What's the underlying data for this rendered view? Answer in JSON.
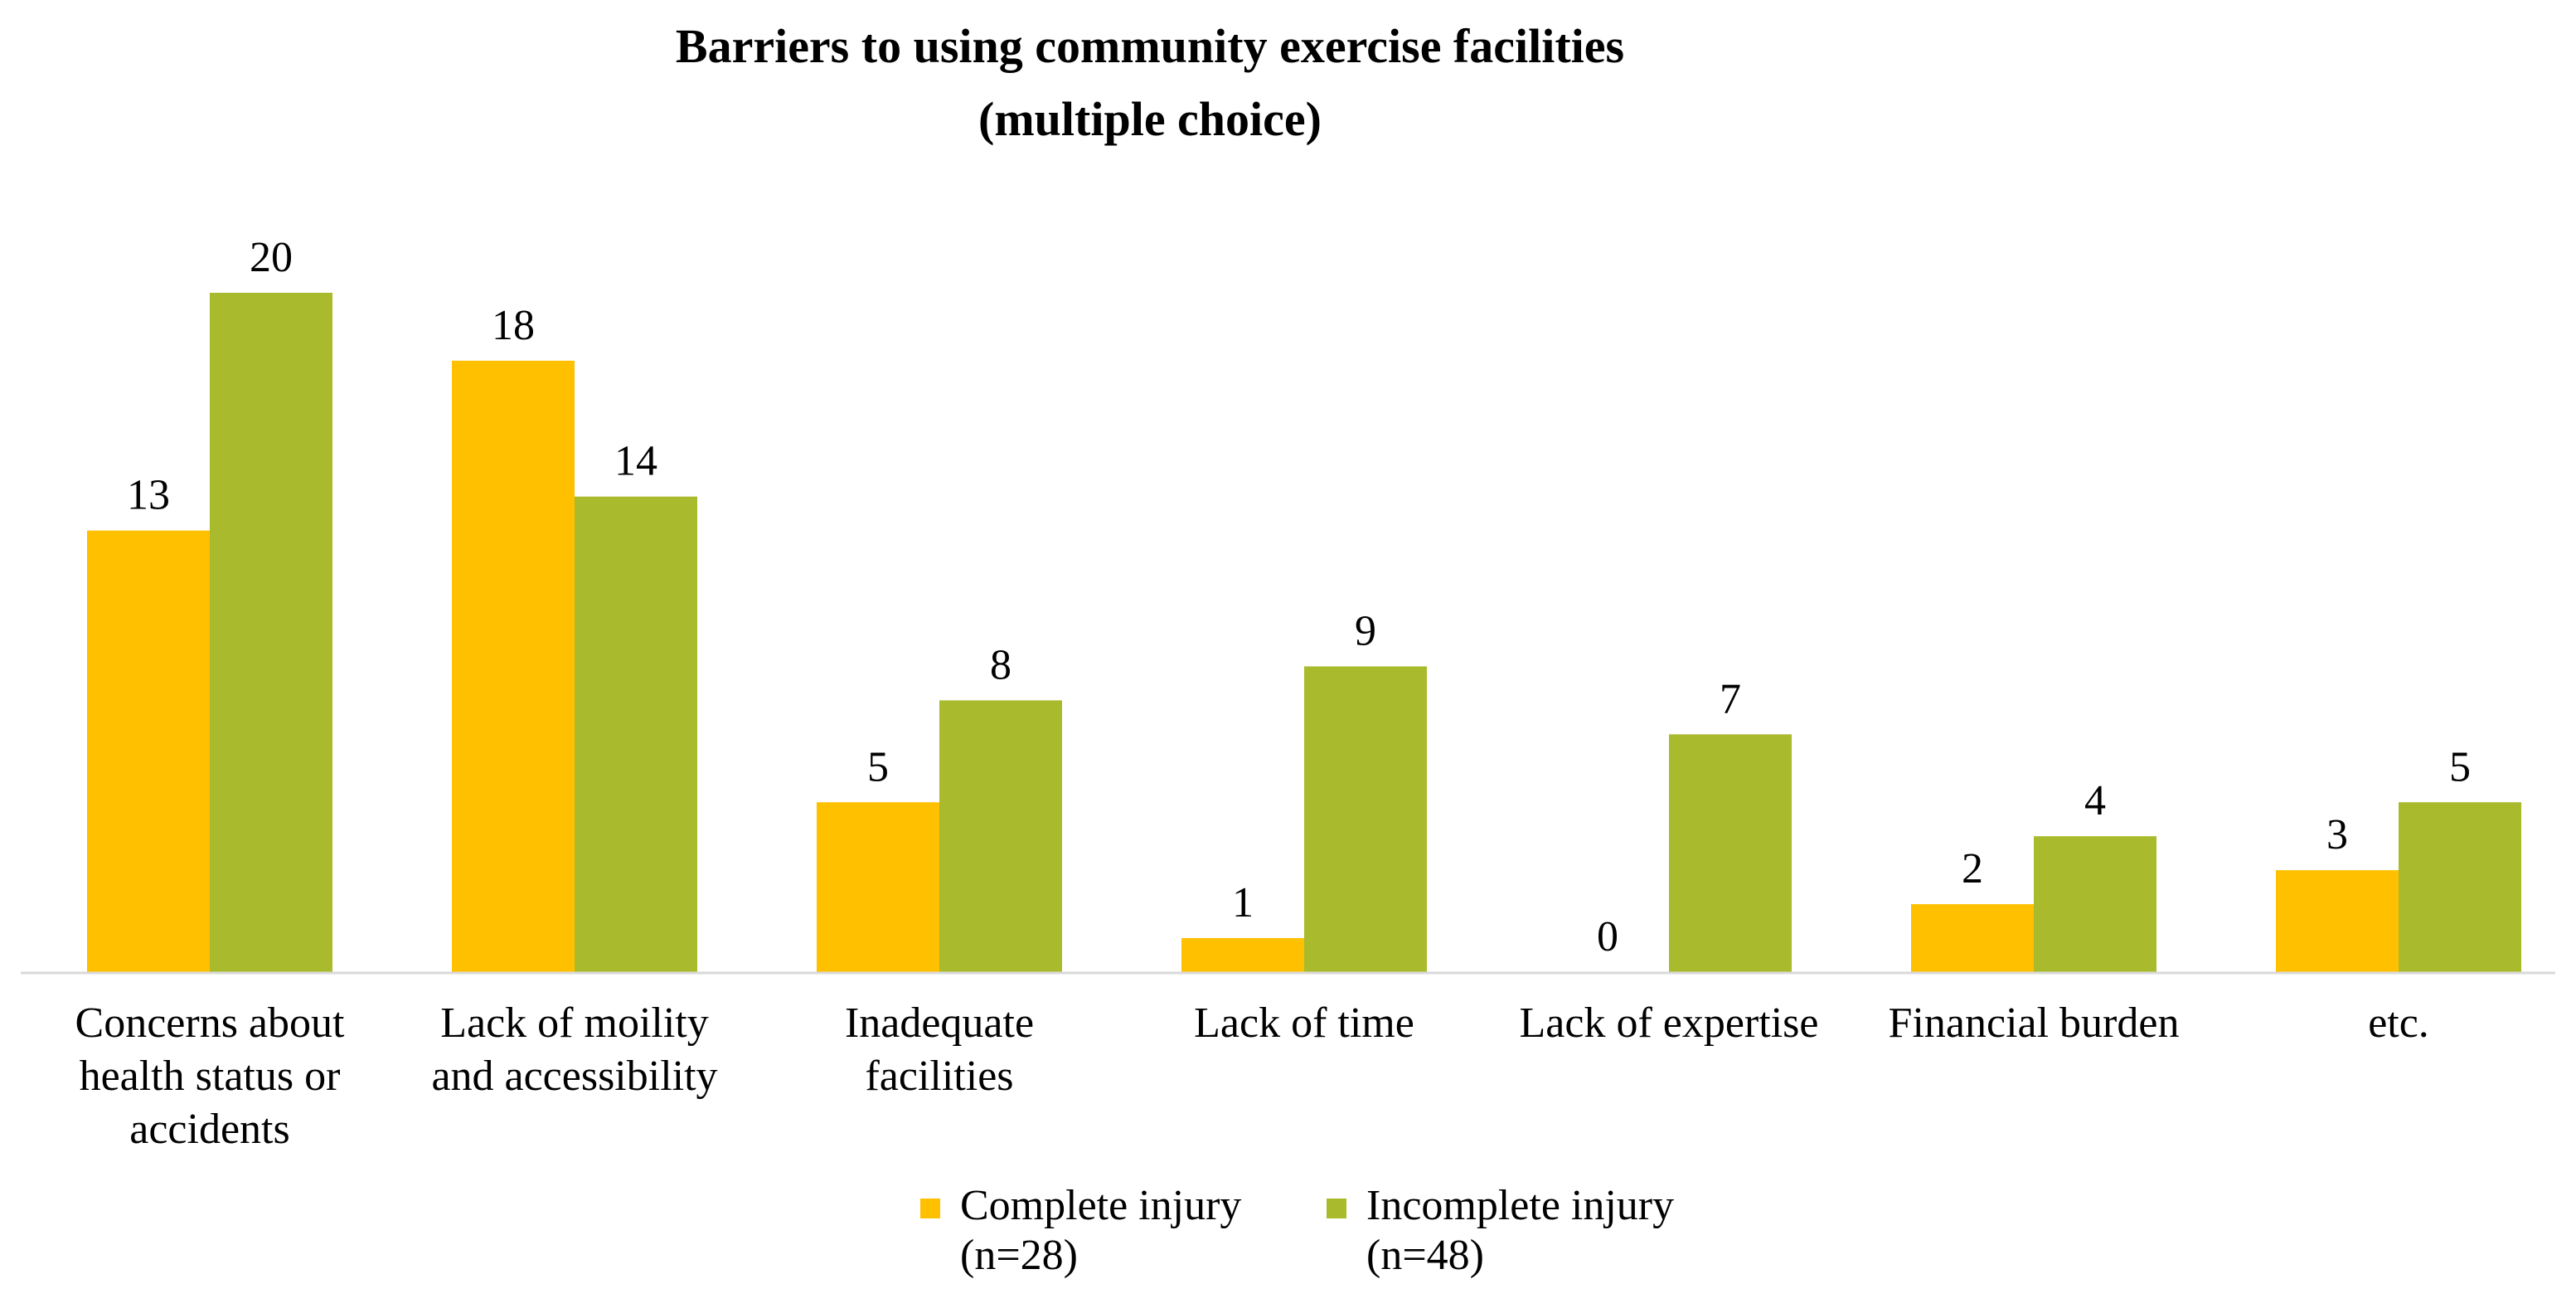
{
  "chart_data": {
    "type": "bar",
    "title": "Barriers to using community exercise facilities",
    "subtitle": "(multiple choice)",
    "categories": [
      "Concerns about health status or accidents",
      "Lack of moility and accessibility",
      "Inadequate facilities",
      "Lack of time",
      "Lack of expertise",
      "Financial burden",
      "etc."
    ],
    "category_lines": [
      [
        "Concerns about",
        "health status or",
        "accidents"
      ],
      [
        "Lack of moility",
        "and accessibility"
      ],
      [
        "Inadequate",
        "facilities"
      ],
      [
        "Lack of time"
      ],
      [
        "Lack of expertise"
      ],
      [
        "Financial burden"
      ],
      [
        "etc."
      ]
    ],
    "series": [
      {
        "name": "Complete injury (n=28)",
        "legend_lines": [
          "Complete injury",
          "(n=28)"
        ],
        "color": "#FFC000",
        "values": [
          13,
          18,
          5,
          1,
          0,
          2,
          3
        ]
      },
      {
        "name": "Incomplete injury (n=48)",
        "legend_lines": [
          "Incomplete injury",
          "(n=48)"
        ],
        "color": "#A9BB2C",
        "values": [
          20,
          14,
          8,
          9,
          7,
          4,
          5
        ]
      }
    ],
    "xlabel": "",
    "ylabel": "",
    "ylim": [
      0,
      20
    ],
    "grid": false,
    "y_axis_visible": false,
    "legend_position": "bottom",
    "data_labels": true,
    "axis_line_color": "#D9D9D9"
  }
}
